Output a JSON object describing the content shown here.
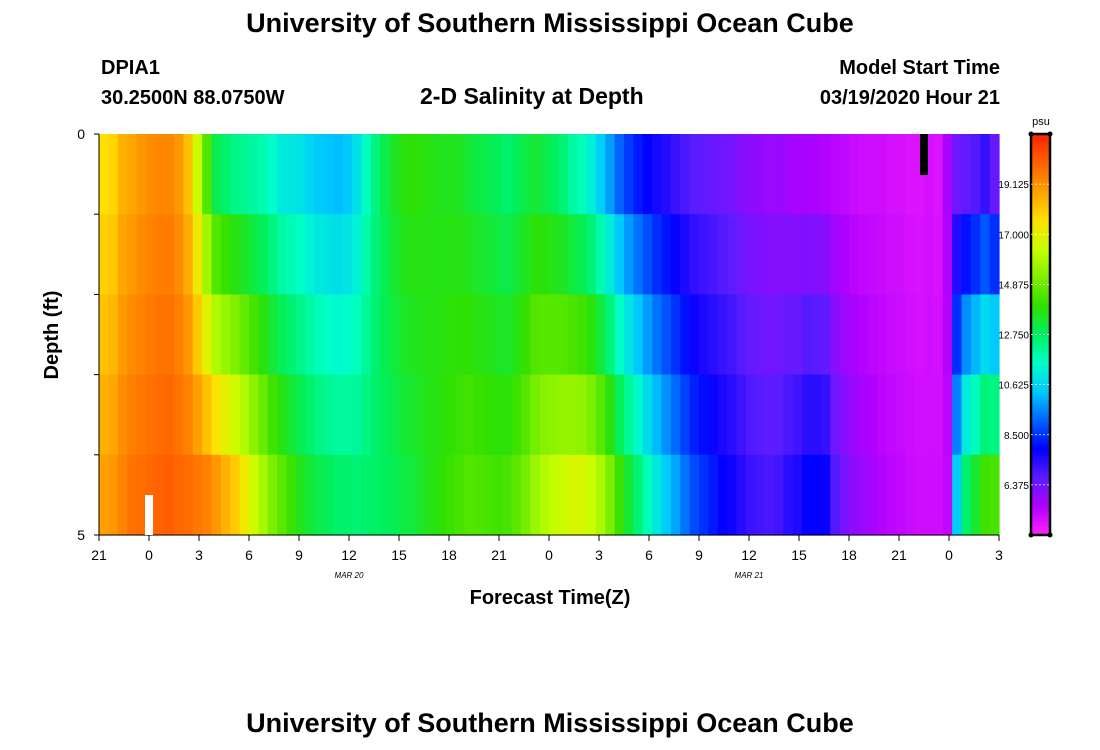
{
  "header": {
    "title": "University of Southern Mississippi Ocean Cube",
    "station": "DPIA1",
    "coords": "30.2500N 88.0750W",
    "chart_title": "2-D Salinity at Depth",
    "model_label": "Model Start Time",
    "model_time": "03/19/2020 Hour 21"
  },
  "footer": {
    "title": "University of Southern Mississippi Ocean Cube"
  },
  "colors": {
    "colorbar": [
      "#ff22ff",
      "#b000ff",
      "#5b1cff",
      "#0000ff",
      "#0064ff",
      "#00c8ff",
      "#00ffc8",
      "#00f060",
      "#30e000",
      "#80f000",
      "#c8ff00",
      "#ffe000",
      "#ffa000",
      "#ff6000",
      "#ff2000"
    ]
  },
  "chart_data": {
    "type": "heatmap",
    "title": "2-D Salinity at Depth",
    "xlabel": "Forecast Time(Z)",
    "ylabel": "Depth (ft)",
    "units": "psu",
    "y_tick_labels": [
      "0",
      "5"
    ],
    "ylim": [
      0,
      5
    ],
    "x_tick_labels": [
      "21",
      "0",
      "3",
      "6",
      "9",
      "12",
      "15",
      "18",
      "21",
      "0",
      "3",
      "6",
      "9",
      "12",
      "15",
      "18",
      "21",
      "0",
      "3"
    ],
    "x_range_hours": [
      0,
      54
    ],
    "date_labels": [
      {
        "text": "MAR 20",
        "hour": 15
      },
      {
        "text": "MAR 21",
        "hour": 39
      }
    ],
    "colorbar": {
      "min": 4.25,
      "max": 21.25,
      "tick_labels": [
        "19.125",
        "17.000",
        "14.875",
        "12.750",
        "10.625",
        "8.500",
        "6.375"
      ]
    },
    "depth_levels": [
      0,
      1,
      2,
      3,
      4,
      5
    ],
    "surface_layer": [
      17.6,
      17.8,
      18.5,
      18.7,
      19.0,
      19.2,
      19.3,
      19.3,
      19.0,
      18.2,
      16.5,
      14.5,
      13.0,
      12.6,
      12.3,
      12.2,
      12.0,
      11.8,
      11.5,
      11.1,
      11.0,
      10.9,
      10.6,
      10.4,
      10.3,
      10.2,
      10.4,
      10.8,
      11.6,
      12.4,
      13.0,
      13.5,
      13.8,
      13.9,
      13.8,
      13.7,
      13.6,
      13.6,
      13.5,
      13.3,
      13.1,
      13.0,
      12.8,
      12.6,
      12.8,
      13.1,
      13.3,
      13.1,
      12.8,
      12.5,
      12.0,
      11.7,
      11.2,
      10.5,
      9.8,
      9.1,
      8.6,
      8.2,
      7.9,
      7.6,
      7.4,
      7.1,
      6.9,
      6.7,
      6.6,
      6.5,
      6.4,
      6.3,
      6.1,
      6.0,
      5.9,
      5.8,
      5.8,
      5.7,
      5.6,
      5.6,
      5.5,
      5.4,
      5.3,
      5.2,
      5.1,
      5.0,
      5.0,
      5.0,
      4.9,
      4.9,
      4.8,
      4.8,
      4.9,
      4.8,
      5.6,
      6.4,
      6.6,
      6.8,
      7.2,
      6.5
    ],
    "bottom_layer": [
      18.8,
      19.0,
      19.4,
      19.7,
      19.8,
      19.9,
      20.0,
      20.1,
      19.9,
      19.8,
      19.6,
      19.4,
      19.0,
      18.5,
      18.0,
      17.3,
      16.5,
      15.8,
      15.1,
      14.6,
      14.1,
      13.6,
      13.3,
      13.0,
      12.8,
      12.6,
      12.6,
      12.5,
      12.6,
      12.7,
      12.8,
      12.9,
      13.1,
      13.2,
      13.5,
      13.7,
      13.9,
      14.1,
      14.3,
      14.5,
      14.4,
      14.3,
      14.2,
      14.3,
      14.6,
      15.0,
      15.6,
      16.0,
      16.3,
      16.5,
      16.7,
      16.7,
      16.4,
      15.9,
      15.1,
      14.1,
      13.3,
      12.5,
      11.7,
      11.0,
      10.4,
      9.9,
      9.3,
      8.8,
      8.5,
      8.2,
      7.9,
      7.7,
      7.4,
      7.1,
      7.0,
      6.9,
      7.0,
      7.3,
      7.5,
      7.9,
      7.9,
      7.8,
      6.8,
      6.3,
      6.0,
      5.8,
      5.6,
      5.4,
      5.3,
      5.2,
      5.1,
      5.0,
      5.0,
      5.0,
      5.2,
      10.5,
      12.6,
      13.4,
      14.2,
      14.3
    ]
  }
}
